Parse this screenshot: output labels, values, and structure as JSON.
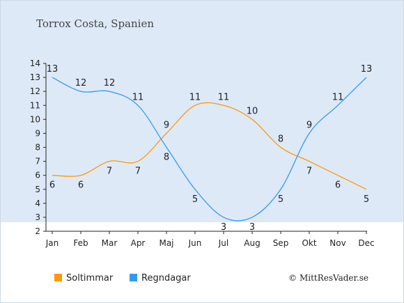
{
  "title": "Torrox Costa, Spanien",
  "credit": "© MittResVader.se",
  "chart_data": {
    "type": "line",
    "categories": [
      "Jan",
      "Feb",
      "Mar",
      "Apr",
      "Maj",
      "Jun",
      "Jul",
      "Aug",
      "Sep",
      "Okt",
      "Nov",
      "Dec"
    ],
    "ylim": [
      2,
      14
    ],
    "yticks": [
      2,
      3,
      4,
      5,
      6,
      7,
      8,
      9,
      10,
      11,
      12,
      13,
      14
    ],
    "grid": false,
    "legend_position": "bottom-left",
    "series": [
      {
        "name": "Soltimmar",
        "color": "#ff9900",
        "values": [
          6,
          6,
          7,
          7,
          9,
          11,
          11,
          10,
          8,
          7,
          6,
          5
        ]
      },
      {
        "name": "Regndagar",
        "color": "#3399ee",
        "values": [
          13,
          12,
          12,
          11,
          8,
          5,
          3,
          3,
          5,
          9,
          11,
          13
        ]
      }
    ]
  }
}
